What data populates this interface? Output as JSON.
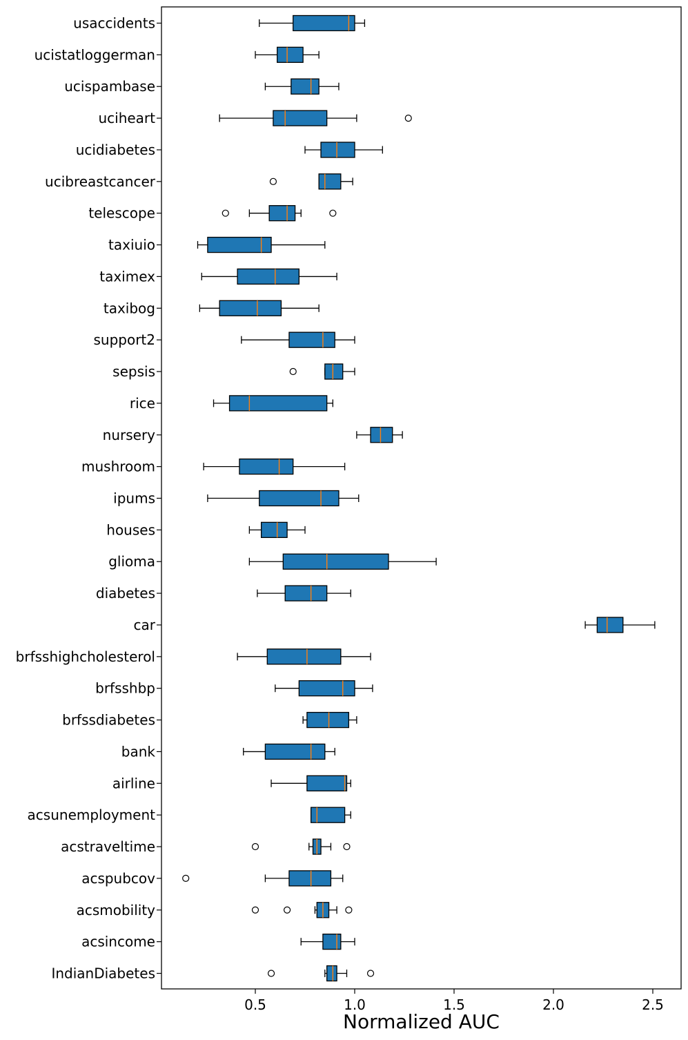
{
  "chart_data": {
    "type": "boxplot",
    "orientation": "horizontal",
    "title": "",
    "xlabel": "Normalized AUC",
    "ylabel": "",
    "xlim": [
      0.05,
      2.65
    ],
    "xticks": [
      0.5,
      1.0,
      1.5,
      2.0,
      2.5
    ],
    "xtick_labels": [
      "0.5",
      "1.0",
      "1.5",
      "2.0",
      "2.5"
    ],
    "box_color": "#1f77b4",
    "median_color": "#ff7f0e",
    "grid": false,
    "categories": [
      {
        "name": "usaccidents",
        "whislo": 0.52,
        "q1": 0.69,
        "med": 0.97,
        "q3": 1.0,
        "whishi": 1.05,
        "fliers": []
      },
      {
        "name": "ucistatloggerman",
        "whislo": 0.5,
        "q1": 0.61,
        "med": 0.66,
        "q3": 0.74,
        "whishi": 0.82,
        "fliers": []
      },
      {
        "name": "ucispambase",
        "whislo": 0.55,
        "q1": 0.68,
        "med": 0.78,
        "q3": 0.82,
        "whishi": 0.92,
        "fliers": []
      },
      {
        "name": "uciheart",
        "whislo": 0.32,
        "q1": 0.59,
        "med": 0.65,
        "q3": 0.86,
        "whishi": 1.01,
        "fliers": [
          1.27
        ]
      },
      {
        "name": "ucidiabetes",
        "whislo": 0.75,
        "q1": 0.83,
        "med": 0.91,
        "q3": 1.0,
        "whishi": 1.14,
        "fliers": []
      },
      {
        "name": "ucibreastcancer",
        "whislo": 0.82,
        "q1": 0.82,
        "med": 0.85,
        "q3": 0.93,
        "whishi": 0.99,
        "fliers": [
          0.59
        ]
      },
      {
        "name": "telescope",
        "whislo": 0.47,
        "q1": 0.57,
        "med": 0.66,
        "q3": 0.7,
        "whishi": 0.73,
        "fliers": [
          0.35,
          0.89
        ]
      },
      {
        "name": "taxiuio",
        "whislo": 0.21,
        "q1": 0.26,
        "med": 0.53,
        "q3": 0.58,
        "whishi": 0.85,
        "fliers": []
      },
      {
        "name": "taximex",
        "whislo": 0.23,
        "q1": 0.41,
        "med": 0.6,
        "q3": 0.72,
        "whishi": 0.91,
        "fliers": []
      },
      {
        "name": "taxibog",
        "whislo": 0.22,
        "q1": 0.32,
        "med": 0.51,
        "q3": 0.63,
        "whishi": 0.82,
        "fliers": []
      },
      {
        "name": "support2",
        "whislo": 0.43,
        "q1": 0.67,
        "med": 0.84,
        "q3": 0.9,
        "whishi": 1.0,
        "fliers": []
      },
      {
        "name": "sepsis",
        "whislo": 0.85,
        "q1": 0.85,
        "med": 0.89,
        "q3": 0.94,
        "whishi": 1.0,
        "fliers": [
          0.69
        ]
      },
      {
        "name": "rice",
        "whislo": 0.29,
        "q1": 0.37,
        "med": 0.47,
        "q3": 0.86,
        "whishi": 0.89,
        "fliers": []
      },
      {
        "name": "nursery",
        "whislo": 1.01,
        "q1": 1.08,
        "med": 1.13,
        "q3": 1.19,
        "whishi": 1.24,
        "fliers": []
      },
      {
        "name": "mushroom",
        "whislo": 0.24,
        "q1": 0.42,
        "med": 0.62,
        "q3": 0.69,
        "whishi": 0.95,
        "fliers": []
      },
      {
        "name": "ipums",
        "whislo": 0.26,
        "q1": 0.52,
        "med": 0.83,
        "q3": 0.92,
        "whishi": 1.02,
        "fliers": []
      },
      {
        "name": "houses",
        "whislo": 0.47,
        "q1": 0.53,
        "med": 0.61,
        "q3": 0.66,
        "whishi": 0.75,
        "fliers": []
      },
      {
        "name": "glioma",
        "whislo": 0.47,
        "q1": 0.64,
        "med": 0.86,
        "q3": 1.17,
        "whishi": 1.41,
        "fliers": []
      },
      {
        "name": "diabetes",
        "whislo": 0.51,
        "q1": 0.65,
        "med": 0.78,
        "q3": 0.86,
        "whishi": 0.98,
        "fliers": []
      },
      {
        "name": "car",
        "whislo": 2.16,
        "q1": 2.22,
        "med": 2.27,
        "q3": 2.35,
        "whishi": 2.51,
        "fliers": []
      },
      {
        "name": "brfsshighcholesterol",
        "whislo": 0.41,
        "q1": 0.56,
        "med": 0.76,
        "q3": 0.93,
        "whishi": 1.08,
        "fliers": []
      },
      {
        "name": "brfsshbp",
        "whislo": 0.6,
        "q1": 0.72,
        "med": 0.94,
        "q3": 1.0,
        "whishi": 1.09,
        "fliers": []
      },
      {
        "name": "brfssdiabetes",
        "whislo": 0.74,
        "q1": 0.76,
        "med": 0.87,
        "q3": 0.97,
        "whishi": 1.01,
        "fliers": []
      },
      {
        "name": "bank",
        "whislo": 0.44,
        "q1": 0.55,
        "med": 0.78,
        "q3": 0.85,
        "whishi": 0.9,
        "fliers": []
      },
      {
        "name": "airline",
        "whislo": 0.58,
        "q1": 0.76,
        "med": 0.95,
        "q3": 0.96,
        "whishi": 0.98,
        "fliers": []
      },
      {
        "name": "acsunemployment",
        "whislo": 0.78,
        "q1": 0.78,
        "med": 0.81,
        "q3": 0.95,
        "whishi": 0.98,
        "fliers": []
      },
      {
        "name": "acstraveltime",
        "whislo": 0.77,
        "q1": 0.79,
        "med": 0.81,
        "q3": 0.83,
        "whishi": 0.88,
        "fliers": [
          0.5,
          0.96
        ]
      },
      {
        "name": "acspubcov",
        "whislo": 0.55,
        "q1": 0.67,
        "med": 0.78,
        "q3": 0.88,
        "whishi": 0.94,
        "fliers": [
          0.15
        ]
      },
      {
        "name": "acsmobility",
        "whislo": 0.8,
        "q1": 0.81,
        "med": 0.84,
        "q3": 0.87,
        "whishi": 0.91,
        "fliers": [
          0.5,
          0.66,
          0.97
        ]
      },
      {
        "name": "acsincome",
        "whislo": 0.73,
        "q1": 0.84,
        "med": 0.91,
        "q3": 0.93,
        "whishi": 1.0,
        "fliers": []
      },
      {
        "name": "IndianDiabetes",
        "whislo": 0.85,
        "q1": 0.86,
        "med": 0.89,
        "q3": 0.91,
        "whishi": 0.96,
        "fliers": [
          0.58,
          1.08
        ]
      }
    ]
  }
}
